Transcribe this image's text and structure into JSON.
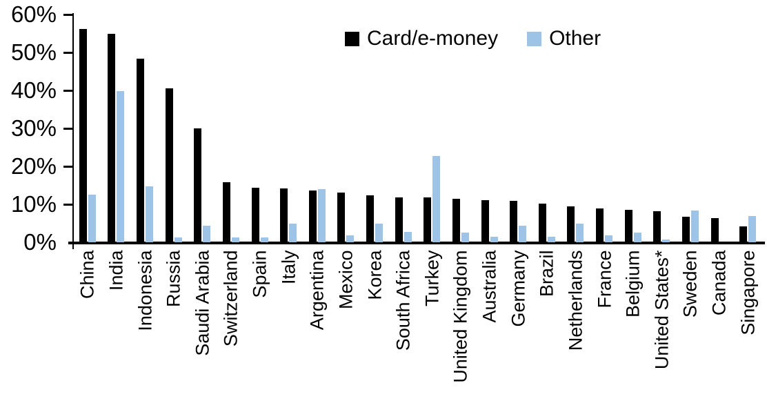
{
  "chart_data": {
    "type": "bar",
    "title": "",
    "xlabel": "",
    "ylabel": "",
    "ylim": [
      0,
      60
    ],
    "yticks": [
      "0%",
      "10%",
      "20%",
      "30%",
      "40%",
      "50%",
      "60%"
    ],
    "grid": false,
    "legend_position": "top-center",
    "categories": [
      "China",
      "India",
      "Indonesia",
      "Russia",
      "Saudi Arabia",
      "Switzerland",
      "Spain",
      "Italy",
      "Argentina",
      "Mexico",
      "Korea",
      "South Africa",
      "Turkey",
      "United Kingdom",
      "Australia",
      "Germany",
      "Brazil",
      "Netherlands",
      "France",
      "Belgium",
      "United States*",
      "Sweden",
      "Canada",
      "Singapore"
    ],
    "series": [
      {
        "name": "Card/e-money",
        "color": "#000000",
        "values": [
          56.2,
          55.0,
          48.3,
          40.5,
          30.0,
          15.9,
          14.4,
          14.2,
          13.6,
          13.1,
          12.3,
          11.9,
          11.8,
          11.4,
          11.1,
          10.9,
          10.2,
          9.5,
          8.9,
          8.5,
          8.2,
          6.8,
          6.4,
          4.2
        ]
      },
      {
        "name": "Other",
        "color": "#9DC3E6",
        "values": [
          12.5,
          39.8,
          14.8,
          1.3,
          4.3,
          1.2,
          1.3,
          5.0,
          14.0,
          1.8,
          4.9,
          2.7,
          22.8,
          2.6,
          1.4,
          4.3,
          1.4,
          5.0,
          1.9,
          2.5,
          0.8,
          8.4,
          0.0,
          6.9
        ]
      }
    ]
  }
}
